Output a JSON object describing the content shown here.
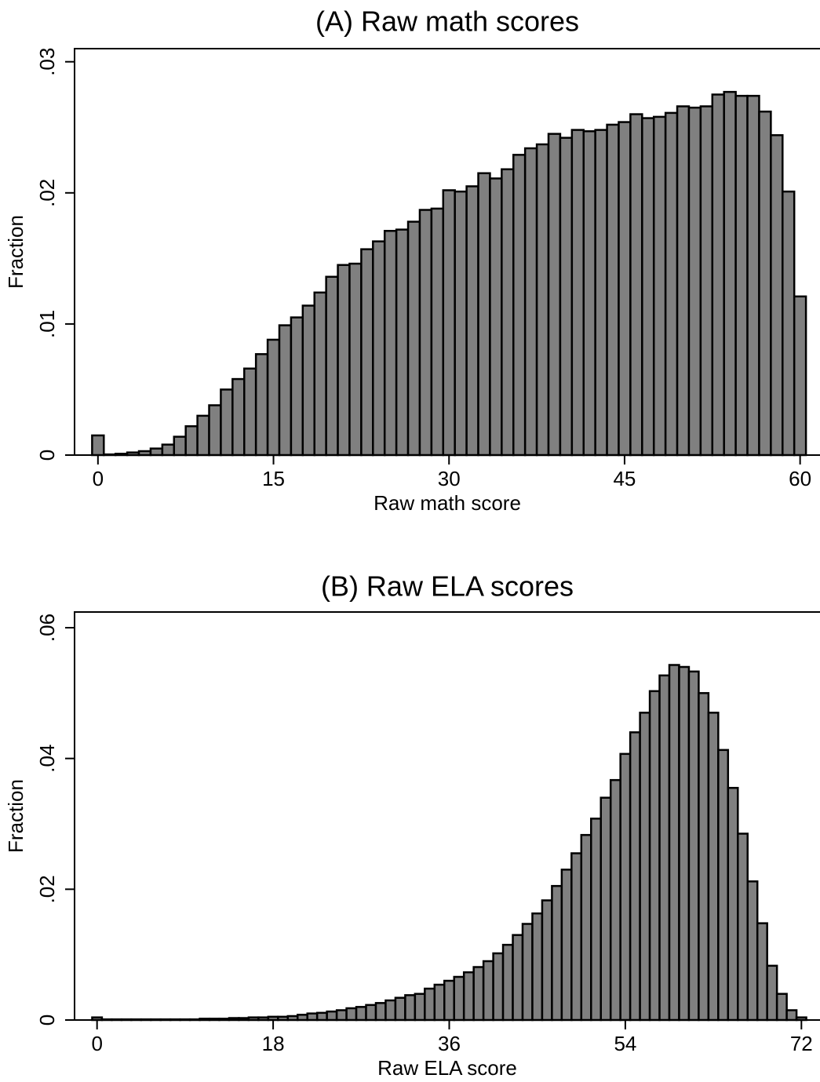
{
  "chart_data": [
    {
      "type": "histogram",
      "title": "(A) Raw math scores",
      "x_label": "Raw math score",
      "y_label": "Fraction",
      "color": "#808080",
      "bins": [
        -0.5,
        0.5,
        1.5,
        2.5,
        3.5,
        4.5,
        5.5,
        6.5,
        7.5,
        8.5,
        9.5,
        10.5,
        11.5,
        12.5,
        13.5,
        14.5,
        15.5,
        16.5,
        17.5,
        18.5,
        19.5,
        20.5,
        21.5,
        22.5,
        23.5,
        24.5,
        25.5,
        26.5,
        27.5,
        28.5,
        29.5,
        30.5,
        31.5,
        32.5,
        33.5,
        34.5,
        35.5,
        36.5,
        37.5,
        38.5,
        39.5,
        40.5,
        41.5,
        42.5,
        43.5,
        44.5,
        45.5,
        46.5,
        47.5,
        48.5,
        49.5,
        50.5,
        51.5,
        52.5,
        53.5,
        54.5,
        55.5,
        56.5,
        57.5,
        58.5,
        59.5,
        60.5
      ],
      "values": [
        0.0015,
        5e-05,
        0.0001,
        0.0002,
        0.0003,
        0.0005,
        0.0008,
        0.0014,
        0.0022,
        0.003,
        0.0038,
        0.005,
        0.0058,
        0.0066,
        0.0077,
        0.0088,
        0.0099,
        0.0105,
        0.0114,
        0.0124,
        0.0136,
        0.0145,
        0.0146,
        0.0157,
        0.0163,
        0.0171,
        0.0172,
        0.0178,
        0.0187,
        0.0188,
        0.0202,
        0.0201,
        0.0205,
        0.0215,
        0.0211,
        0.0218,
        0.0229,
        0.0234,
        0.0237,
        0.0245,
        0.0242,
        0.0248,
        0.0247,
        0.0248,
        0.0252,
        0.0254,
        0.026,
        0.0257,
        0.0258,
        0.0261,
        0.0266,
        0.0265,
        0.0266,
        0.0275,
        0.0277,
        0.0274,
        0.0274,
        0.0262,
        0.0244,
        0.0201,
        0.0121
      ],
      "xlim": [
        -2,
        61.7
      ],
      "xticks": [
        0,
        15,
        30,
        45,
        60
      ],
      "ylim": [
        0,
        0.031
      ],
      "yticks": [
        0,
        {
          "value": 0.01,
          "label": ".01"
        },
        {
          "value": 0.02,
          "label": ".02"
        },
        {
          "value": 0.03,
          "label": ".03"
        }
      ]
    },
    {
      "type": "histogram",
      "title": "(B) Raw ELA scores",
      "x_label": "Raw ELA score",
      "y_label": "Fraction",
      "color": "#808080",
      "bins": [
        -0.5,
        0.5,
        1.5,
        2.5,
        3.5,
        4.5,
        5.5,
        6.5,
        7.5,
        8.5,
        9.5,
        10.5,
        11.5,
        12.5,
        13.5,
        14.5,
        15.5,
        16.5,
        17.5,
        18.5,
        19.5,
        20.5,
        21.5,
        22.5,
        23.5,
        24.5,
        25.5,
        26.5,
        27.5,
        28.5,
        29.5,
        30.5,
        31.5,
        32.5,
        33.5,
        34.5,
        35.5,
        36.5,
        37.5,
        38.5,
        39.5,
        40.5,
        41.5,
        42.5,
        43.5,
        44.5,
        45.5,
        46.5,
        47.5,
        48.5,
        49.5,
        50.5,
        51.5,
        52.5,
        53.5,
        54.5,
        55.5,
        56.5,
        57.5,
        58.5,
        59.5,
        60.5,
        61.5,
        62.5,
        63.5,
        64.5,
        65.5,
        66.5,
        67.5,
        68.5,
        69.5,
        70.5,
        71.5,
        72.5
      ],
      "values": [
        0.0004,
        0.0001,
        0.0001,
        0.0001,
        0.0001,
        0.0001,
        0.0001,
        0.0001,
        0.0001,
        0.0001,
        0.0001,
        0.0002,
        0.0002,
        0.0002,
        0.0003,
        0.0003,
        0.0004,
        0.0004,
        0.0005,
        0.0005,
        0.0006,
        0.0008,
        0.001,
        0.0011,
        0.0013,
        0.0015,
        0.0018,
        0.002,
        0.0023,
        0.0026,
        0.003,
        0.0034,
        0.0038,
        0.004,
        0.0048,
        0.0054,
        0.006,
        0.0066,
        0.0073,
        0.0081,
        0.009,
        0.0102,
        0.0115,
        0.013,
        0.0147,
        0.0163,
        0.0183,
        0.0205,
        0.023,
        0.0255,
        0.0283,
        0.0308,
        0.034,
        0.0367,
        0.0407,
        0.044,
        0.047,
        0.0503,
        0.0527,
        0.0543,
        0.054,
        0.0533,
        0.05,
        0.047,
        0.0413,
        0.0355,
        0.0285,
        0.0212,
        0.0148,
        0.0083,
        0.004,
        0.0015,
        0.0004
      ],
      "xlim": [
        -2.3,
        73.9
      ],
      "xticks": [
        0,
        18,
        36,
        54,
        72
      ],
      "ylim": [
        0,
        0.0624
      ],
      "yticks": [
        0,
        {
          "value": 0.02,
          "label": ".02"
        },
        {
          "value": 0.04,
          "label": ".04"
        },
        {
          "value": 0.06,
          "label": ".06"
        }
      ]
    }
  ]
}
